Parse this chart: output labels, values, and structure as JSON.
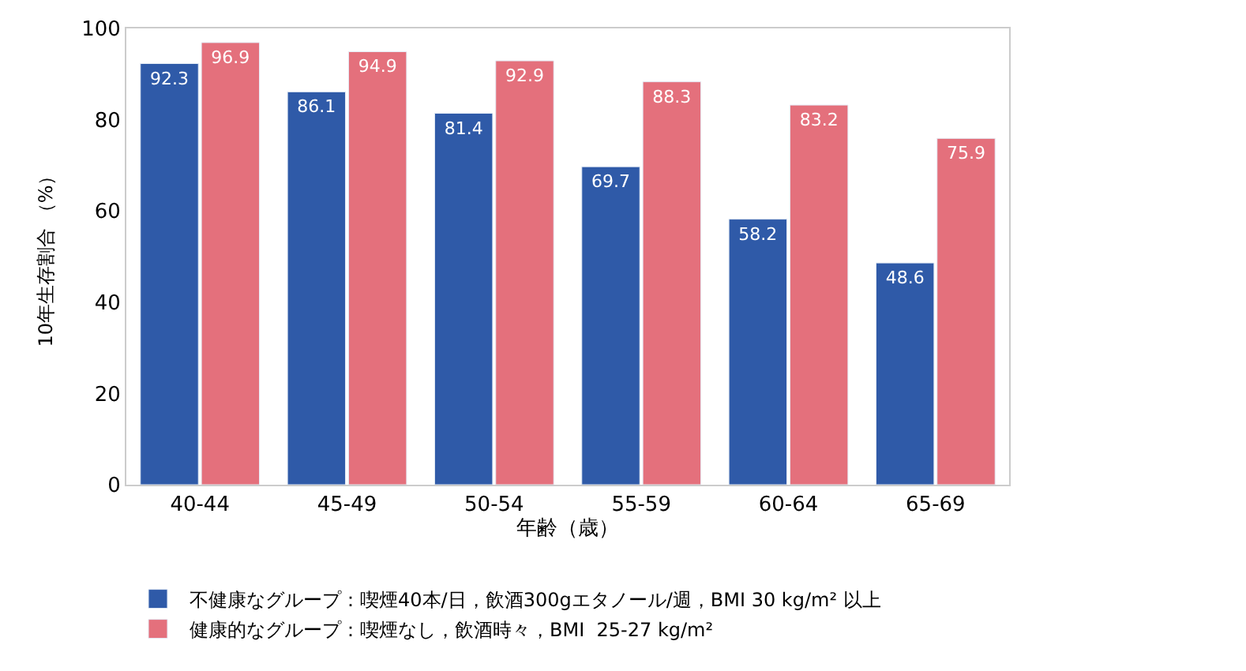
{
  "chart_data": {
    "type": "bar",
    "xlabel": "年齢（歳）",
    "ylabel": "10年生存割合 （%）",
    "categories": [
      "40-44",
      "45-49",
      "50-54",
      "55-59",
      "60-64",
      "65-69"
    ],
    "series": [
      {
        "name": "不健康なグループ：喫煙40本/日，飲酒300gエタノール/週，BMI 30 kg/m² 以上",
        "color": "#2f5aa8",
        "values": [
          92.3,
          86.1,
          81.4,
          69.7,
          58.2,
          48.6
        ]
      },
      {
        "name": "健康的なグループ：喫煙なし，飲酒時々，BMI  25-27 kg/m²",
        "color": "#e4707c",
        "values": [
          96.9,
          94.9,
          92.9,
          88.3,
          83.2,
          75.9
        ]
      }
    ],
    "ylim": [
      0,
      100
    ],
    "yticks": [
      0,
      20,
      40,
      60,
      80,
      100
    ],
    "legend": "bottom",
    "data_labels": true
  }
}
